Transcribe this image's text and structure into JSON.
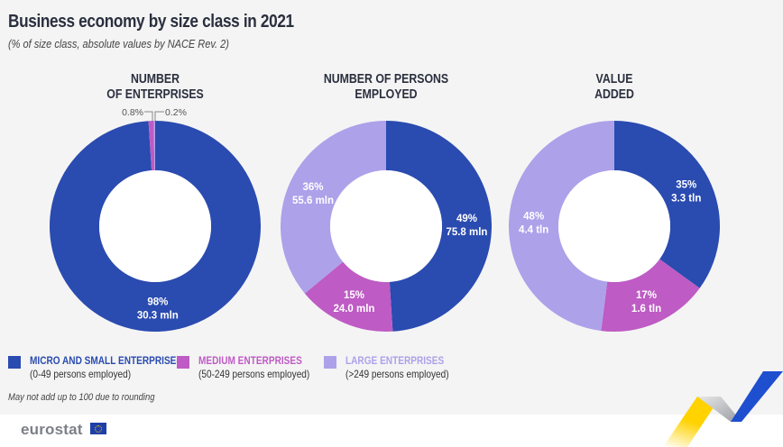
{
  "header": {
    "title": "Business economy by size class in 2021",
    "subtitle": "(% of size class, absolute values by NACE Rev. 2)"
  },
  "colors": {
    "micro_small": "#2a4bb0",
    "medium": "#be5bc4",
    "large": "#ada1ea"
  },
  "chart_data": [
    {
      "type": "pie",
      "variant": "donut",
      "title_lines": [
        "NUMBER",
        "OF ENTERPRISES"
      ],
      "categories": [
        "Micro and small enterprises",
        "Medium enterprises",
        "Large enterprises"
      ],
      "values": [
        98,
        0.8,
        0.2
      ],
      "labels": [
        {
          "pct": "98%",
          "abs": "30.3 mln"
        },
        {
          "pct": "0.8%",
          "abs": ""
        },
        {
          "pct": "0.2%",
          "abs": ""
        }
      ]
    },
    {
      "type": "pie",
      "variant": "donut",
      "title_lines": [
        "NUMBER OF PERSONS",
        "EMPLOYED"
      ],
      "categories": [
        "Micro and small enterprises",
        "Medium enterprises",
        "Large enterprises"
      ],
      "values": [
        49,
        15,
        36
      ],
      "labels": [
        {
          "pct": "49%",
          "abs": "75.8 mln"
        },
        {
          "pct": "15%",
          "abs": "24.0 mln"
        },
        {
          "pct": "36%",
          "abs": "55.6 mln"
        }
      ]
    },
    {
      "type": "pie",
      "variant": "donut",
      "title_lines": [
        "VALUE",
        "ADDED"
      ],
      "categories": [
        "Micro and small enterprises",
        "Medium enterprises",
        "Large enterprises"
      ],
      "values": [
        35,
        17,
        48
      ],
      "labels": [
        {
          "pct": "35%",
          "abs": "3.3 tln"
        },
        {
          "pct": "17%",
          "abs": "1.6 tln"
        },
        {
          "pct": "48%",
          "abs": "4.4 tln"
        }
      ]
    }
  ],
  "legend": [
    {
      "label": "MICRO AND SMALL ENTERPRISES",
      "detail": "(0-49 persons employed)",
      "color": "#2a4bb0"
    },
    {
      "label": "MEDIUM ENTERPRISES",
      "detail": "(50-249 persons employed)",
      "color": "#be5bc4"
    },
    {
      "label": "LARGE ENTERPRISES",
      "detail": "(>249 persons employed)",
      "color": "#ada1ea"
    }
  ],
  "footnote": "May not add up to 100 due to rounding",
  "branding": {
    "logo_text": "eurostat",
    "flag_icon": "eu-flag-icon"
  }
}
